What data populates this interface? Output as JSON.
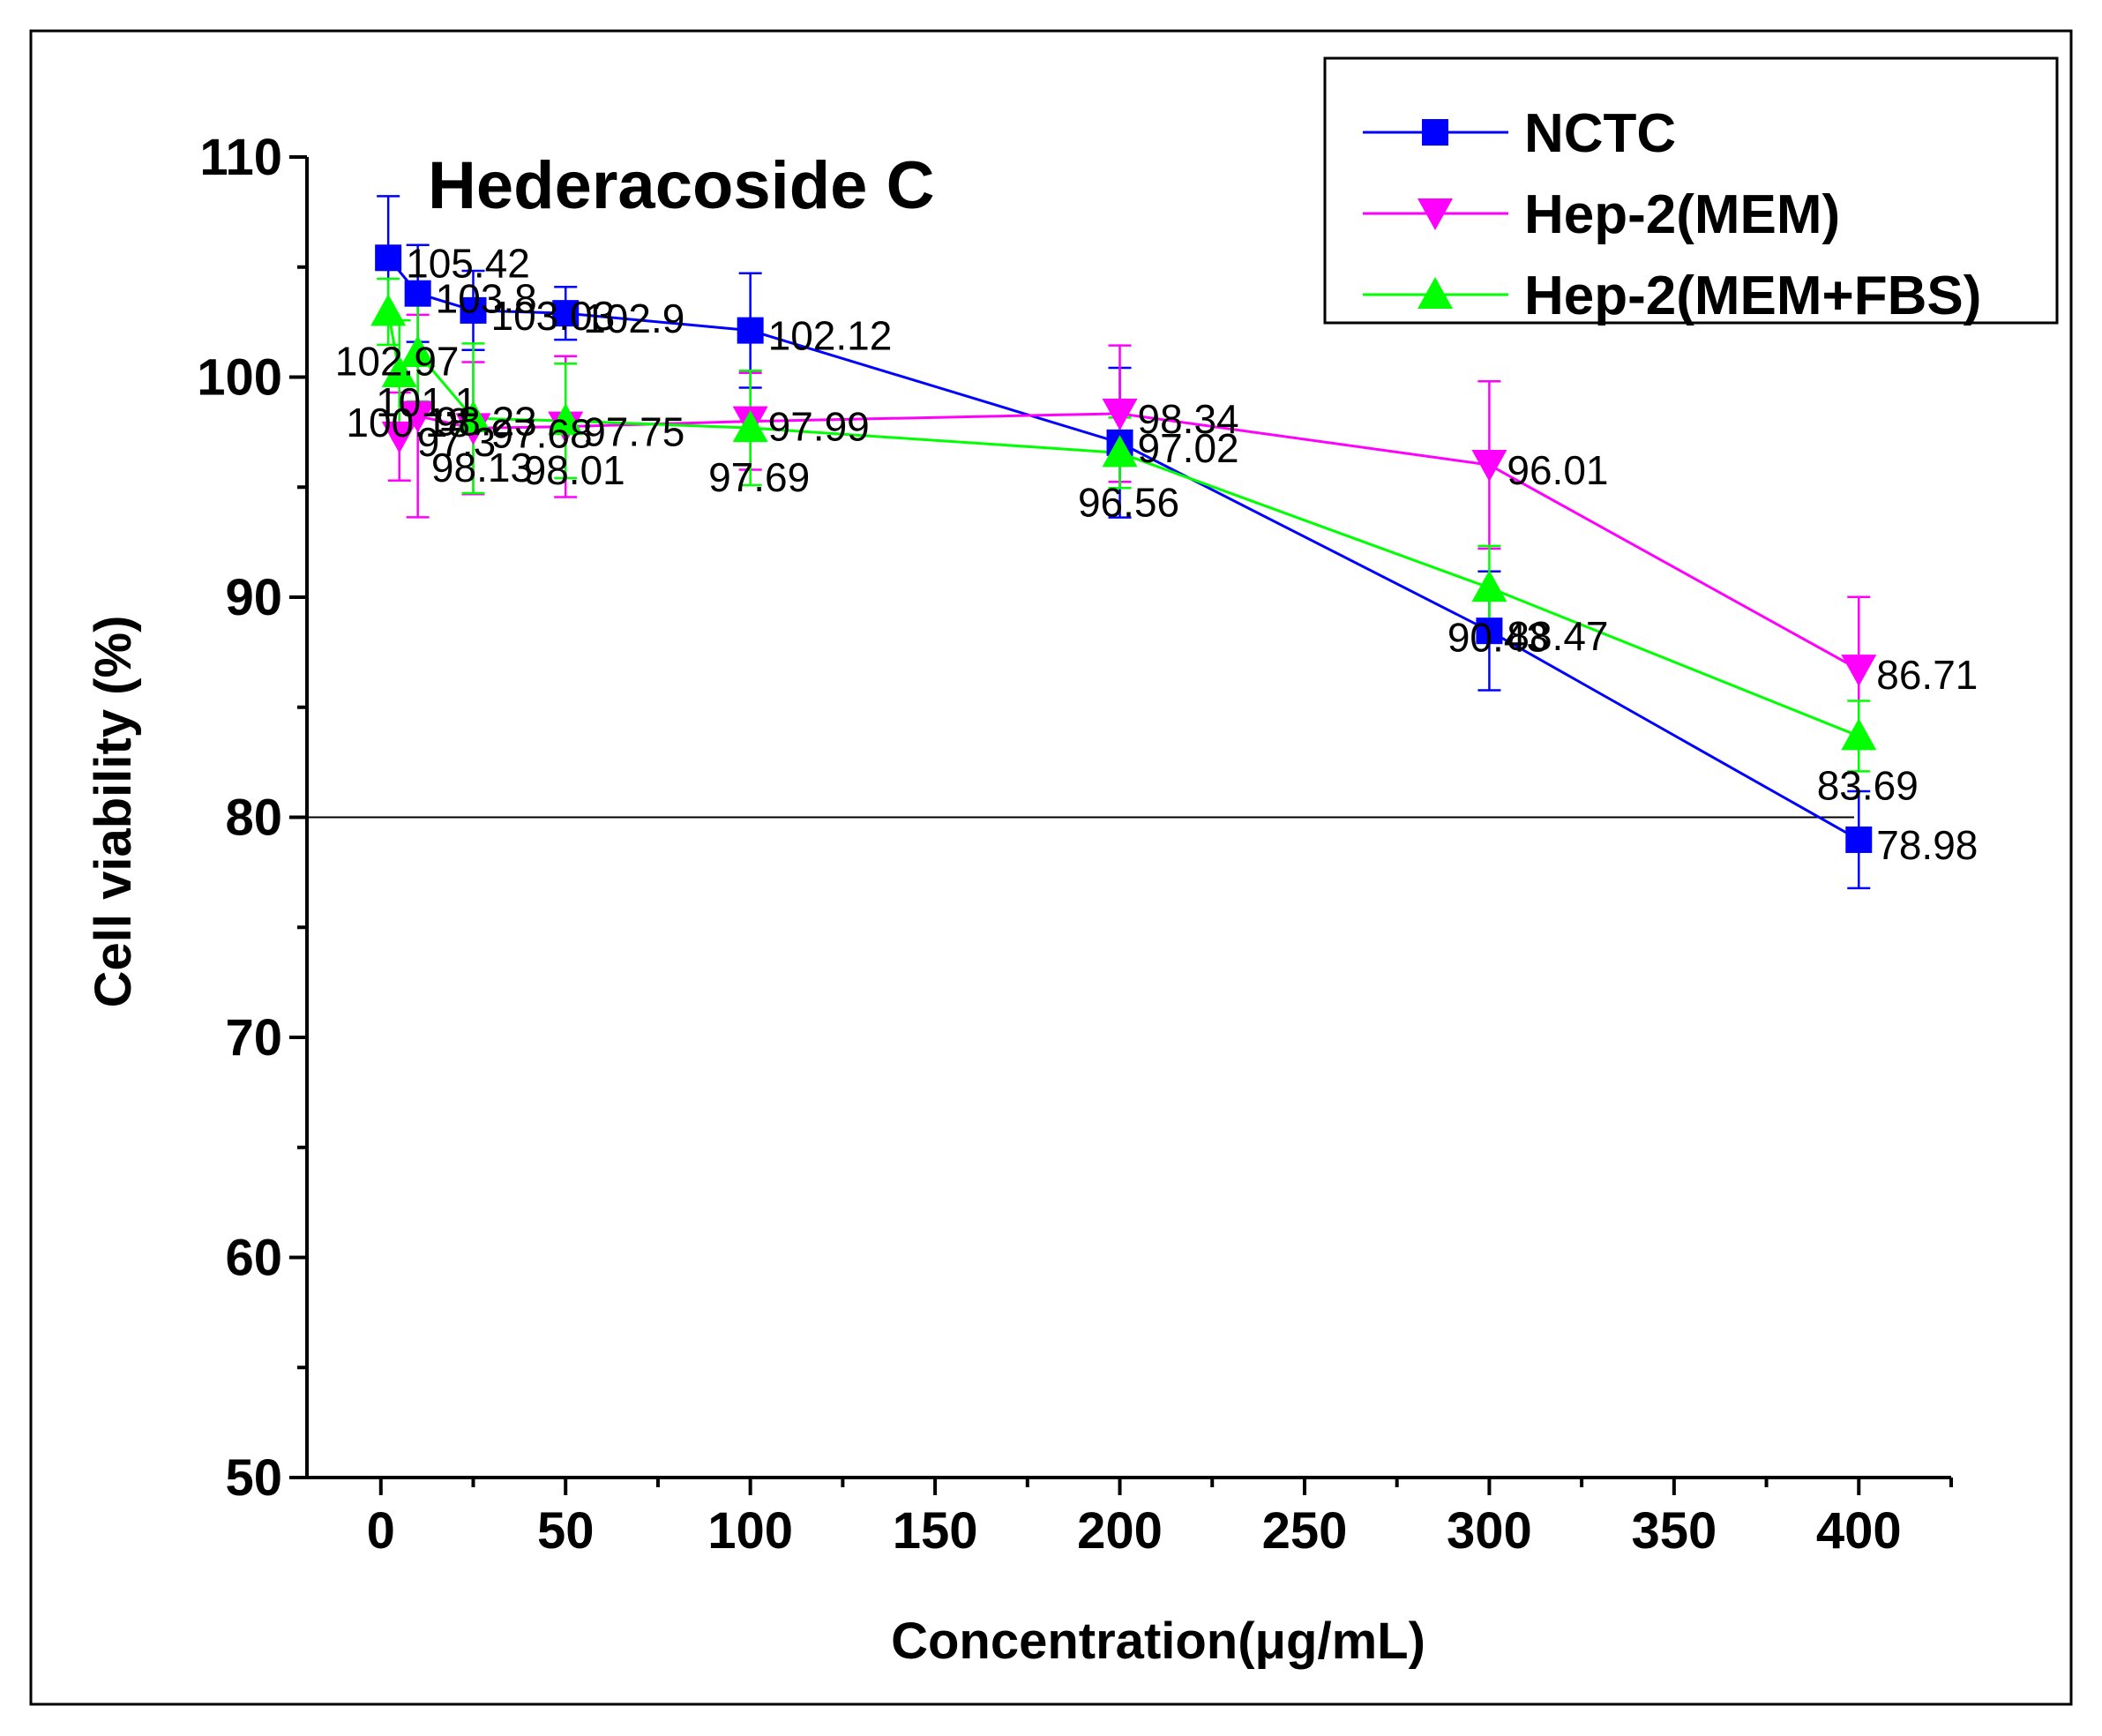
{
  "chart_data": {
    "type": "line",
    "title": "Hederacoside C",
    "xlabel": "Concentration(μg/mL)",
    "ylabel": "Cell viability (%)",
    "xlim": [
      -20,
      425
    ],
    "ylim": [
      50,
      110
    ],
    "x_ticks": [
      "0",
      "50",
      "100",
      "150",
      "200",
      "250",
      "300",
      "350",
      "400"
    ],
    "y_ticks": [
      "50",
      "60",
      "70",
      "80",
      "90",
      "100",
      "110"
    ],
    "reference_line": 80,
    "legend_position": "top-right",
    "series": [
      {
        "name": "NCTC",
        "color": "#0000ff",
        "marker": "square",
        "points": [
          {
            "x": 2,
            "y": 105.42,
            "err": 2.8,
            "label": "105.42"
          },
          {
            "x": 10,
            "y": 103.8,
            "err": 2.2,
            "label": "103.8"
          },
          {
            "x": 25,
            "y": 103.03,
            "err": 1.8,
            "label": "103.03"
          },
          {
            "x": 50,
            "y": 102.9,
            "err": 1.2,
            "label": "102.9"
          },
          {
            "x": 100,
            "y": 102.12,
            "err": 2.6,
            "label": "102.12"
          },
          {
            "x": 200,
            "y": 97.02,
            "err": 3.4,
            "label": "97.02"
          },
          {
            "x": 300,
            "y": 88.47,
            "err": 2.7,
            "label": "88.47"
          },
          {
            "x": 400,
            "y": 78.98,
            "err": 2.2,
            "label": "78.98"
          }
        ]
      },
      {
        "name": "Hep-2(MEM)",
        "color": "#ff00ff",
        "marker": "triangle-down",
        "points": [
          {
            "x": 5,
            "y": 97.3,
            "err": 2.0,
            "label": "97.3"
          },
          {
            "x": 10,
            "y": 98.23,
            "err": 4.6,
            "label": "98.23"
          },
          {
            "x": 25,
            "y": 97.68,
            "err": 3.0,
            "label": "97.68"
          },
          {
            "x": 50,
            "y": 97.75,
            "err": 3.2,
            "label": "97.75"
          },
          {
            "x": 100,
            "y": 97.99,
            "err": 2.2,
            "label": "97.99"
          },
          {
            "x": 200,
            "y": 98.34,
            "err": 3.1,
            "label": "98.34"
          },
          {
            "x": 300,
            "y": 96.01,
            "err": 3.8,
            "label": "96.01"
          },
          {
            "x": 400,
            "y": 86.71,
            "err": 3.3,
            "label": "86.71"
          }
        ]
      },
      {
        "name": "Hep-2(MEM+FBS)",
        "color": "#00ff00",
        "marker": "triangle-up",
        "points": [
          {
            "x": 2,
            "y": 102.97,
            "err": 1.5,
            "label": "102.97"
          },
          {
            "x": 5,
            "y": 100.18,
            "err": 2.4,
            "label": "100.18"
          },
          {
            "x": 10,
            "y": 101.1,
            "err": 2.2,
            "label": "101.1"
          },
          {
            "x": 25,
            "y": 98.13,
            "err": 3.4,
            "label": "98.13"
          },
          {
            "x": 50,
            "y": 98.01,
            "err": 2.6,
            "label": "98.01"
          },
          {
            "x": 100,
            "y": 97.69,
            "err": 2.6,
            "label": "97.69"
          },
          {
            "x": 200,
            "y": 96.56,
            "err": 1.6,
            "label": "96.56"
          },
          {
            "x": 300,
            "y": 90.43,
            "err": 1.9,
            "label": "90.43"
          },
          {
            "x": 400,
            "y": 83.69,
            "err": 1.6,
            "label": "83.69"
          }
        ]
      }
    ]
  }
}
